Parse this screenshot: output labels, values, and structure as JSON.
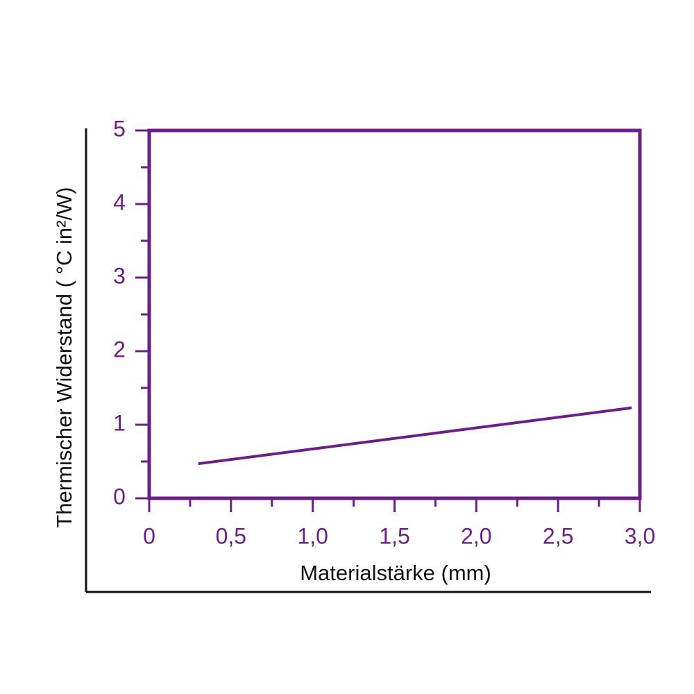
{
  "chart_data": {
    "type": "line",
    "x_label": "Materialstärke (mm)",
    "y_label": "Thermischer Widerstand ( °C in²/W)",
    "x": [
      0.3,
      2.95
    ],
    "series": [
      {
        "color": "#6b1e87",
        "values": [
          0.47,
          1.23
        ]
      }
    ],
    "xlim": [
      0,
      3
    ],
    "xticks": [
      0,
      {
        "value": 0.5,
        "label": "0,5"
      },
      {
        "value": 1,
        "label": "1,0"
      },
      {
        "value": 1.5,
        "label": "1,5"
      },
      {
        "value": 2,
        "label": "2,0"
      },
      {
        "value": 2.5,
        "label": "2,5"
      },
      {
        "value": 3,
        "label": "3,0"
      }
    ],
    "ylim": [
      0,
      5
    ],
    "yticks": [
      0,
      1,
      2,
      3,
      4,
      5
    ],
    "axis_color": "#6b1e87",
    "grid": false
  }
}
